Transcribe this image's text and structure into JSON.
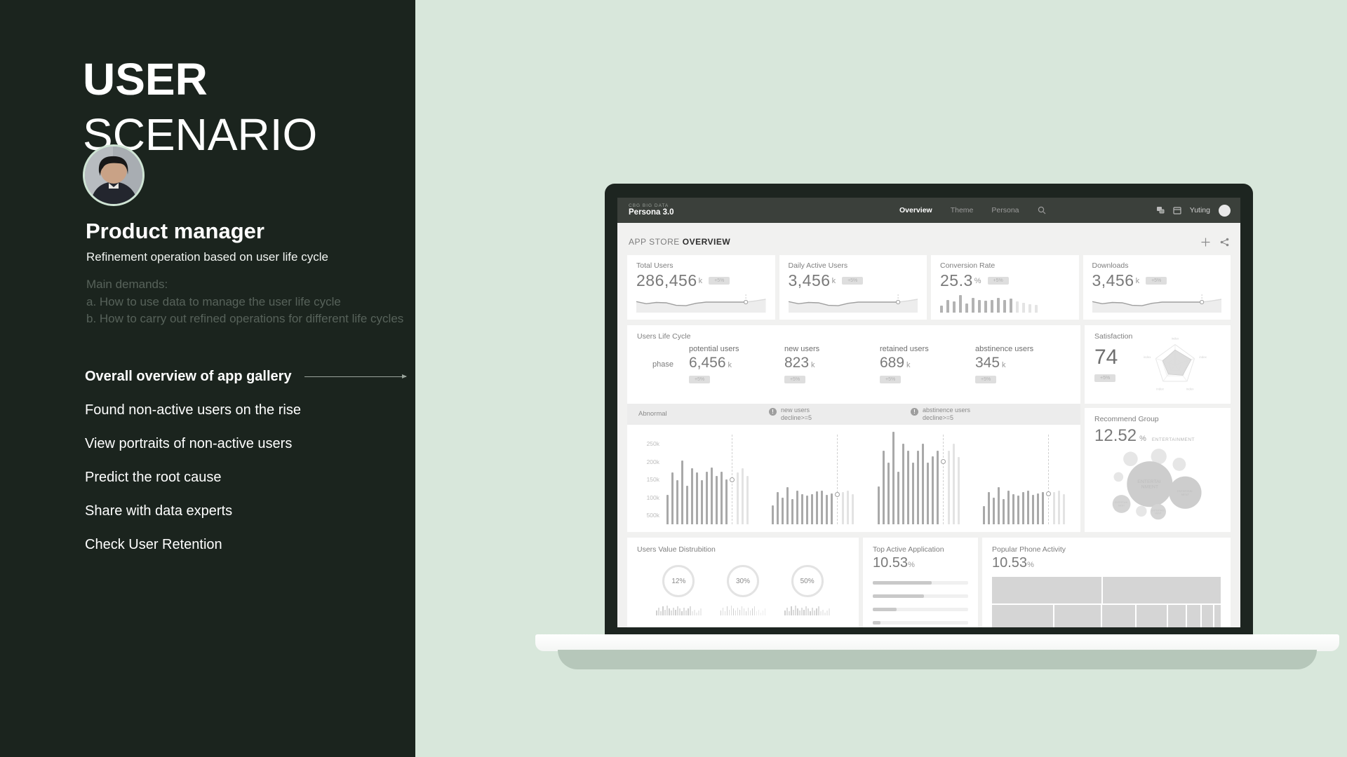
{
  "slide": {
    "title_line1": "USER",
    "title_line2": "SCENARIO",
    "role": "Product manager",
    "role_desc": "Refinement operation based on user life cycle",
    "demands_title": "Main demands:",
    "demand_a": "a. How to use data to manage the user life cycle",
    "demand_b": "b. How to carry out refined operations for different life cycles",
    "steps": [
      "Overall overview of app gallery",
      "Found non-active users on the rise",
      "View portraits of non-active users",
      "Predict the root cause",
      "Share with data experts",
      "Check User Retention"
    ]
  },
  "dashboard": {
    "brand_top": "CBG BIG DATA",
    "brand": "Persona 3.0",
    "nav": [
      {
        "label": "Overview"
      },
      {
        "label": "Theme"
      },
      {
        "label": "Persona"
      }
    ],
    "username": "Yuting",
    "section_light": "APP STORE",
    "section_bold": "OVERVIEW",
    "stats": [
      {
        "label": "Total Users",
        "value": "286,456",
        "unit": "k",
        "badge": "+5%"
      },
      {
        "label": "Daily Active Users",
        "value": "3,456",
        "unit": "k",
        "badge": "+5%"
      },
      {
        "label": "Conversion Rate",
        "value": "25.3",
        "unit": "%",
        "badge": "+5%"
      },
      {
        "label": "Downloads",
        "value": "3,456",
        "unit": "k",
        "badge": "+5%"
      }
    ],
    "spark": {
      "main": [
        0.55,
        0.42,
        0.5,
        0.48,
        0.32,
        0.3,
        0.45,
        0.52,
        0.52,
        0.52,
        0.52,
        0.52
      ],
      "tail": [
        0.6,
        0.7
      ]
    },
    "conv_bars": {
      "values": [
        28,
        52,
        45,
        72,
        38,
        60,
        52,
        48,
        52,
        60,
        52,
        56,
        45,
        40,
        34,
        30
      ],
      "light_from": 12
    },
    "life_cycle": {
      "title": "Users Life Cycle",
      "row_label": "phase",
      "phases": [
        {
          "label": "potential users",
          "value": "6,456",
          "unit": "k",
          "badge": "+5%"
        },
        {
          "label": "new users",
          "value": "823",
          "unit": "k",
          "badge": "+5%"
        },
        {
          "label": "retained users",
          "value": "689",
          "unit": "k",
          "badge": "+5%"
        },
        {
          "label": "abstinence users",
          "value": "345",
          "unit": "k",
          "badge": "+5%"
        }
      ]
    },
    "abnormal": {
      "label": "Abnormal",
      "alerts": [
        {
          "line1": "new users",
          "line2": "decline>=5"
        },
        {
          "line1": "abstinence users",
          "line2": "decline>=5"
        }
      ]
    },
    "main_chart": {
      "type": "bar",
      "ymax": 260,
      "ylabels": [
        "250k",
        "200k",
        "150k",
        "100k",
        "500k"
      ],
      "groups": [
        {
          "dark": [
            85,
            150,
            128,
            185,
            112,
            162,
            150,
            128,
            152,
            165,
            140,
            152,
            130
          ],
          "light": [
            150,
            163,
            140
          ],
          "marker": 130
        },
        {
          "dark": [
            55,
            93,
            78,
            108,
            73,
            98,
            88,
            83,
            88,
            95,
            98,
            85,
            90
          ],
          "light": [
            93,
            98,
            88
          ],
          "marker": 88
        },
        {
          "dark": [
            110,
            213,
            178,
            268,
            153,
            233,
            213,
            178,
            213,
            233,
            178,
            198,
            213
          ],
          "light": [
            213,
            233,
            195
          ],
          "marker": 183
        },
        {
          "dark": [
            53,
            93,
            78,
            108,
            73,
            98,
            88,
            83,
            93,
            98,
            85,
            90,
            93
          ],
          "light": [
            93,
            98,
            88
          ],
          "marker": 90
        }
      ]
    },
    "satisfaction": {
      "title": "Satisfaction",
      "value": "74",
      "badge": "+5%",
      "axis_label": "index"
    },
    "recommend": {
      "title": "Recommend Group",
      "value": "12.52",
      "unit": "%",
      "tag": "ENTERTAINMENT",
      "bubble_line1": "ENTERTAI",
      "bubble_line2": "NMENT",
      "bubble_small1": "ENTERTAIN",
      "bubble_small2": "MENT"
    },
    "value_dist": {
      "title": "Users Value Distrubition",
      "circles": [
        "12%",
        "30%",
        "50%"
      ],
      "tiny": [
        5,
        8,
        4,
        9,
        6,
        10,
        7,
        5,
        8,
        6,
        9,
        7,
        4,
        8,
        5,
        7,
        9,
        4,
        6,
        3,
        5,
        7
      ]
    },
    "top_active": {
      "title": "Top Active Application",
      "value": "10.53",
      "unit": "%",
      "bars": [
        62,
        54,
        25,
        8
      ]
    },
    "phone": {
      "title": "Popular Phone Activity",
      "value": "10.53",
      "unit": "%",
      "rows": [
        [
          48,
          52
        ],
        [
          28,
          21,
          15,
          14,
          8,
          6,
          5,
          3
        ]
      ]
    }
  },
  "colors": {
    "slide_bg": "#1b241e",
    "page_bg": "#d8e7db",
    "header_bg": "#3b403b",
    "card_bg": "#ffffff"
  }
}
